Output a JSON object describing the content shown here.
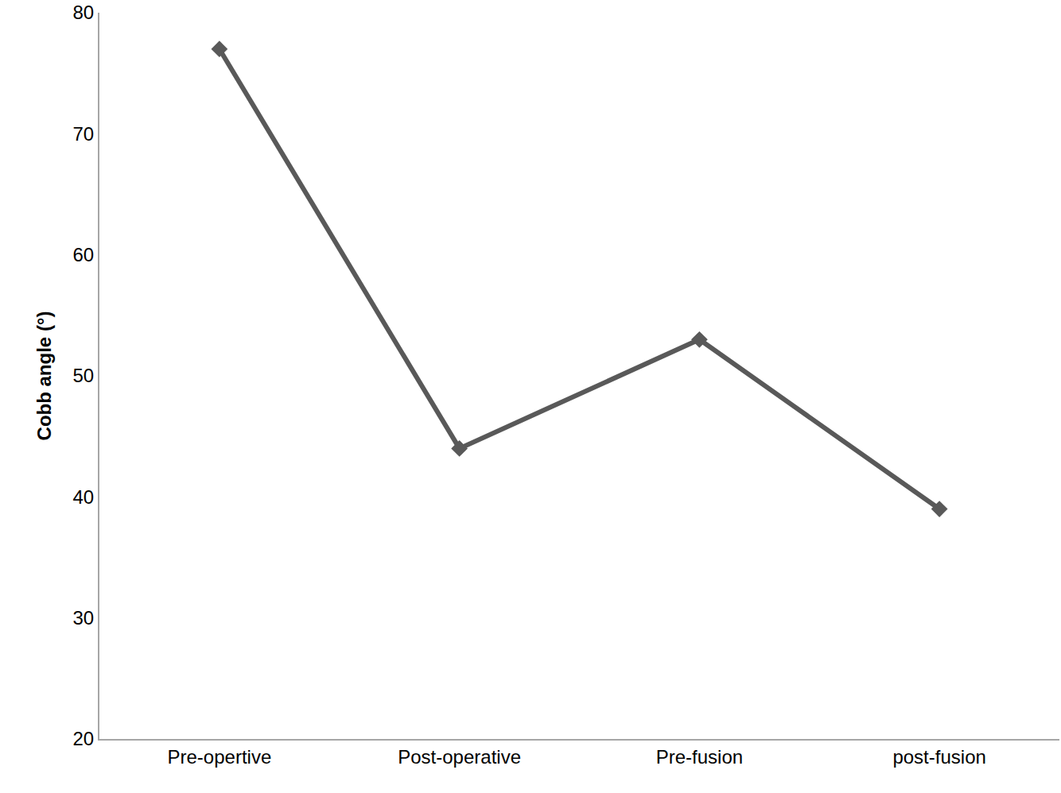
{
  "chart_data": {
    "type": "line",
    "categories": [
      "Pre-opertive",
      "Post-operative",
      "Pre-fusion",
      "post-fusion"
    ],
    "values": [
      77,
      44,
      53,
      39
    ],
    "color": "#595959",
    "marker": "diamond",
    "y_label": "Cobb angle (°)",
    "ylim": [
      20,
      80
    ],
    "yticks": [
      20,
      30,
      40,
      50,
      60,
      70,
      80
    ],
    "grid": false
  }
}
